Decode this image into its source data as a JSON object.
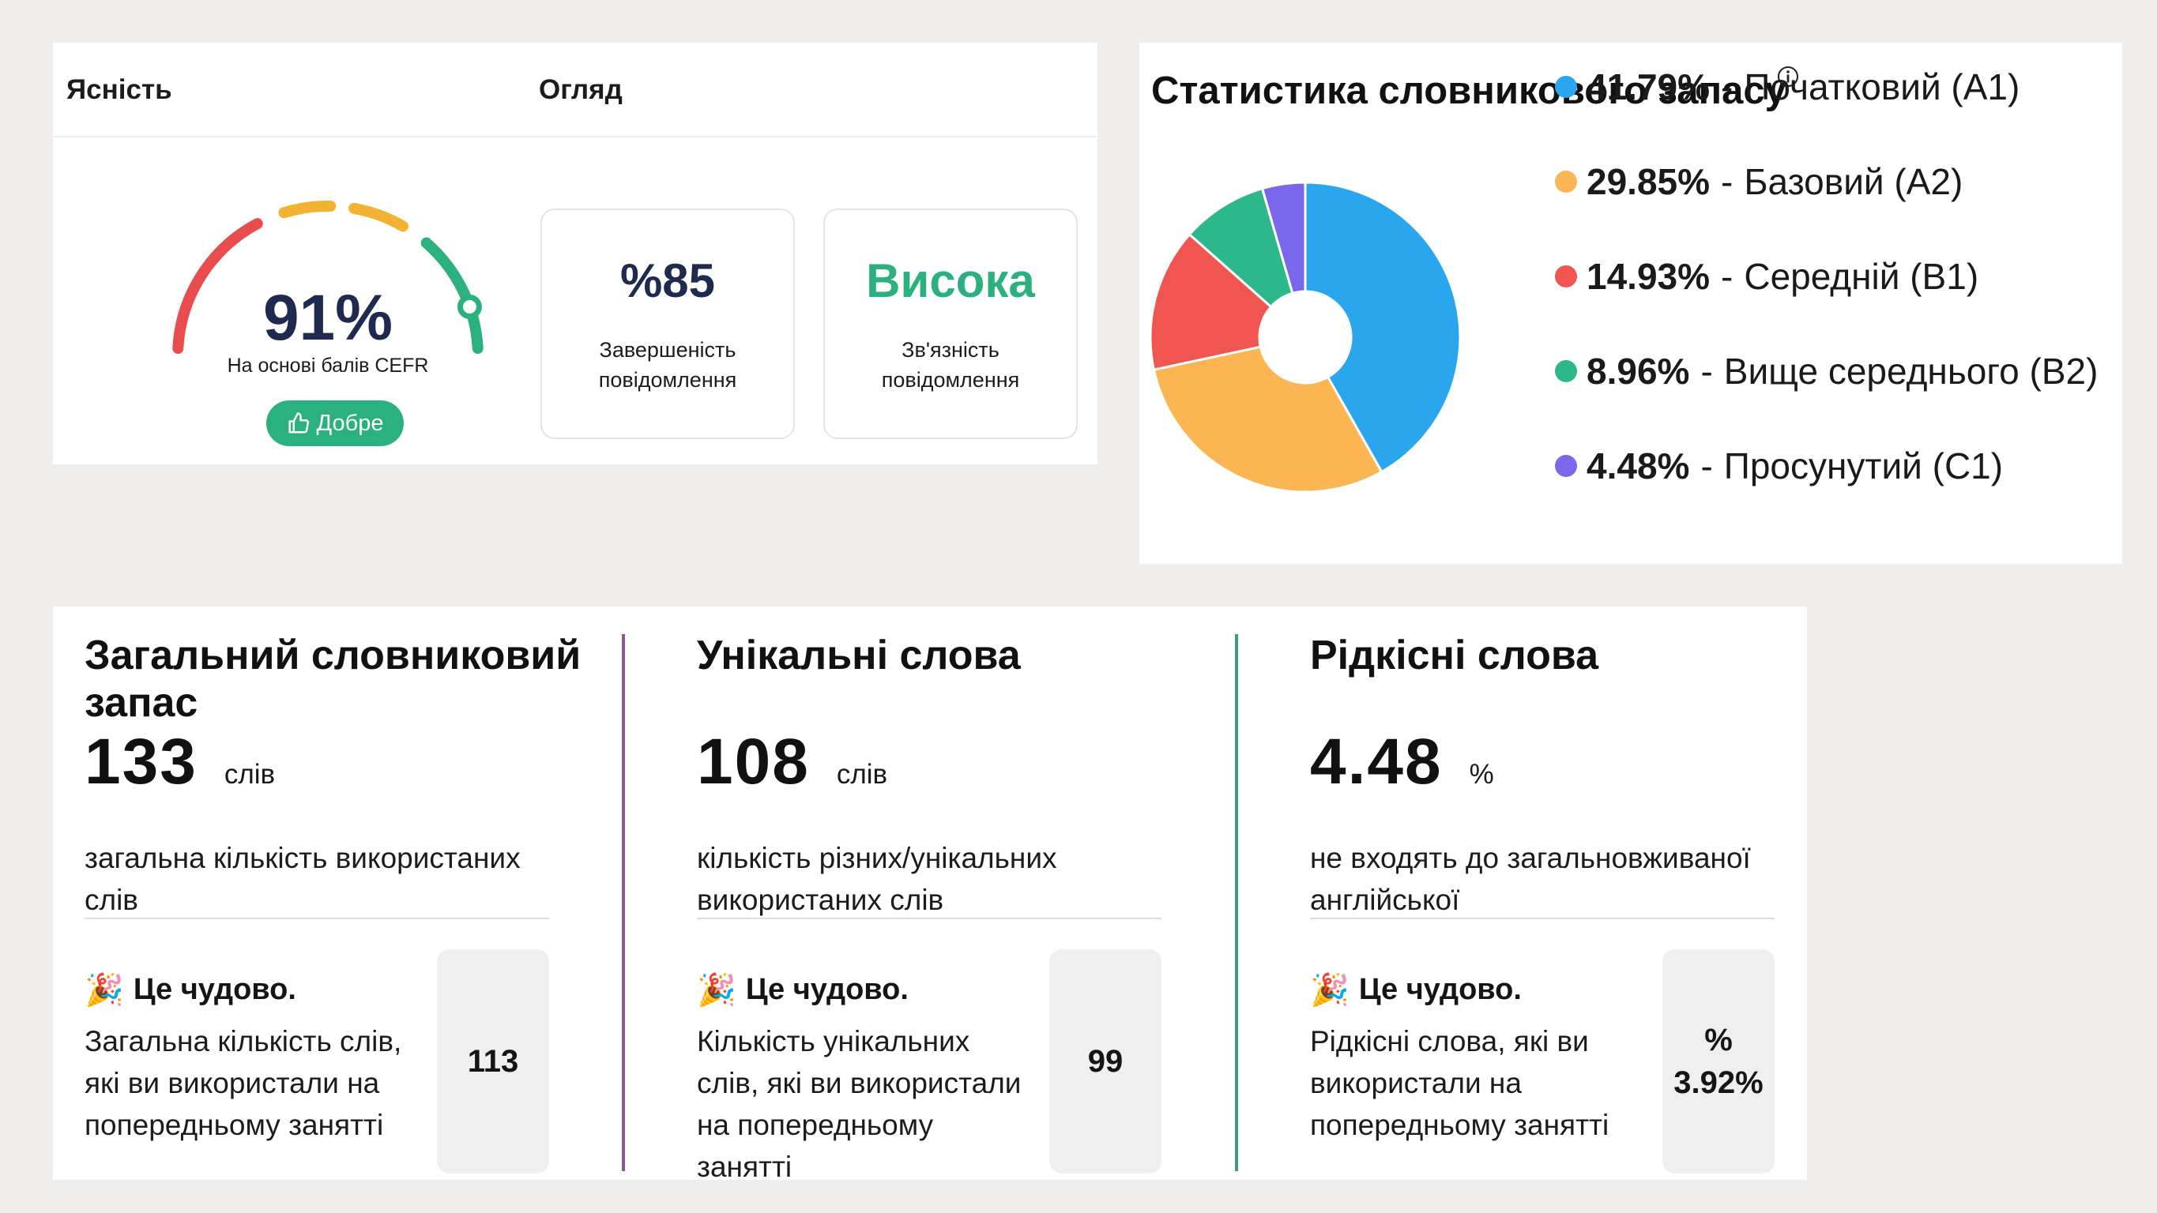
{
  "clarity_panel": {
    "tab_clarity": "Ясність",
    "tab_overview": "Огляд",
    "gauge": {
      "value_text": "91%",
      "value": 91,
      "caption": "На основі балів CEFR",
      "badge_label": "Добре",
      "badge_icon": "thumbs-up-icon",
      "segment_colors": [
        "#e84c4c",
        "#f2b233",
        "#2bb07f"
      ]
    },
    "cards": [
      {
        "value": "%85",
        "label_line1": "Завершеність",
        "label_line2": "повідомлення",
        "color": "#1e2a4e"
      },
      {
        "value": "Висока",
        "label_line1": "Зв'язність",
        "label_line2": "повідомлення",
        "color": "#2bb07f"
      }
    ]
  },
  "vocab_panel": {
    "title": "Статистика словникового запасу",
    "info_icon": "info-icon",
    "legend_separator": "-",
    "chart_data": {
      "type": "pie",
      "title": "Статистика словникового запасу",
      "slices": [
        {
          "label": "Початковий (A1)",
          "value": 41.79,
          "pct_text": "41.79%",
          "color": "#2aa6ef"
        },
        {
          "label": "Базовий (A2)",
          "value": 29.85,
          "pct_text": "29.85%",
          "color": "#fbb653"
        },
        {
          "label": "Середній (B1)",
          "value": 14.93,
          "pct_text": "14.93%",
          "color": "#f1554f"
        },
        {
          "label": "Вище середнього (B2)",
          "value": 8.96,
          "pct_text": "8.96%",
          "color": "#2db88c"
        },
        {
          "label": "Просунутий (C1)",
          "value": 4.48,
          "pct_text": "4.48%",
          "color": "#7b67ec"
        }
      ],
      "donut": true,
      "legend_position": "right"
    }
  },
  "metrics": [
    {
      "title": "Загальний словниковий запас",
      "number": "133",
      "unit": "слів",
      "description": "загальна кількість використаних слів",
      "praise": "Це чудово.",
      "praise_icon": "party-popper-icon",
      "comparison": "Загальна кількість слів, які ви використали на попередньому занятті",
      "previous_line1": "113",
      "previous_line2": "",
      "divider_color": "#8a5a8c"
    },
    {
      "title": "Унікальні слова",
      "number": "108",
      "unit": "слів",
      "description": "кількість різних/унікальних використаних слів",
      "praise": "Це чудово.",
      "praise_icon": "party-popper-icon",
      "comparison": "Кількість унікальних слів, які ви використали на попередньому занятті",
      "previous_line1": "99",
      "previous_line2": "",
      "divider_color": "#3f9a78"
    },
    {
      "title": "Рідкісні слова",
      "number": "4.48",
      "unit": "%",
      "description": "не входять до загальновживаної англійської",
      "praise": "Це чудово.",
      "praise_icon": "party-popper-icon",
      "comparison": "Рідкісні слова, які ви використали на попередньому занятті",
      "previous_line1": "%",
      "previous_line2": "3.92%"
    }
  ]
}
